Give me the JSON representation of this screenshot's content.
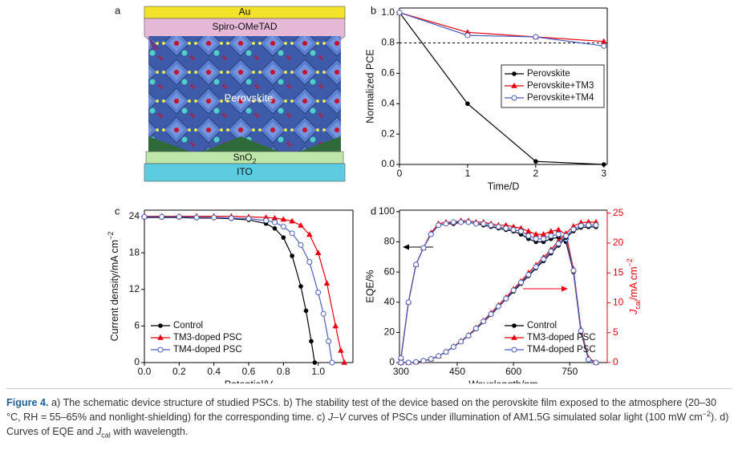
{
  "panel_labels": [
    "a",
    "b",
    "c",
    "d"
  ],
  "schematic": {
    "au": "Au",
    "spiro": "Spiro-OMeTAD",
    "perovskite": "Perovskite",
    "sno2": [
      {
        "text": "SnO"
      },
      {
        "text": "2",
        "style": "sub"
      }
    ],
    "ito": "ITO"
  },
  "chart_data": [
    {
      "type": "line",
      "xlabel": "Time/D",
      "ylabel": "Normalized PCE",
      "x": [
        0,
        1,
        2,
        3
      ],
      "xlim": [
        0,
        3.05
      ],
      "xticks": [
        0,
        1,
        2,
        3
      ],
      "ylim": [
        0,
        1.03
      ],
      "yticks": [
        {
          "value": 0,
          "label": "0.0"
        },
        {
          "value": 0.2,
          "label": "0.2"
        },
        {
          "value": 0.4,
          "label": "0.4"
        },
        {
          "value": 0.6,
          "label": "0.6"
        },
        {
          "value": 0.8,
          "label": "0.8"
        },
        {
          "value": 1.0,
          "label": "1.0"
        }
      ],
      "hline": 0.8,
      "legend": "center right",
      "legend_frame": true,
      "series": [
        {
          "name": "Perovskite",
          "color": "#000000",
          "marker": "circle",
          "values": [
            1.0,
            0.4,
            0.02,
            0.0
          ]
        },
        {
          "name": "Perovskite+TM3",
          "color": "#e8000b",
          "marker": "triangle",
          "values": [
            1.0,
            0.87,
            0.84,
            0.81
          ]
        },
        {
          "name": "Perovskite+TM4",
          "color": "#4a5fc1",
          "marker": "open-circle",
          "values": [
            1.0,
            0.85,
            0.84,
            0.78
          ]
        }
      ]
    },
    {
      "type": "line",
      "xlabel": "Potential/V",
      "ylabel": [
        {
          "text": "Current density/mA cm"
        },
        {
          "text": "−2",
          "style": "sup"
        }
      ],
      "xlim": [
        0,
        1.2
      ],
      "xticks": [
        {
          "value": 0,
          "label": "0.0"
        },
        {
          "value": 0.2,
          "label": "0.2"
        },
        {
          "value": 0.4,
          "label": "0.4"
        },
        {
          "value": 0.6,
          "label": "0.6"
        },
        {
          "value": 0.8,
          "label": "0.8"
        },
        {
          "value": 1.0,
          "label": "1.0"
        }
      ],
      "ylim": [
        0,
        25
      ],
      "yticks": [
        0,
        6,
        12,
        18,
        24
      ],
      "legend": "lower left",
      "legend_frame": false,
      "series": [
        {
          "name": "Control",
          "color": "#000000",
          "marker": "circle",
          "x": [
            0,
            0.1,
            0.2,
            0.3,
            0.4,
            0.5,
            0.6,
            0.7,
            0.75,
            0.8,
            0.85,
            0.9,
            0.93,
            0.96,
            0.98
          ],
          "values": [
            23.8,
            23.8,
            23.8,
            23.7,
            23.7,
            23.6,
            23.4,
            22.8,
            22,
            20.5,
            17.5,
            12.5,
            8.5,
            3.5,
            0
          ]
        },
        {
          "name": "TM3-doped PSC",
          "color": "#e8000b",
          "marker": "triangle",
          "x": [
            0,
            0.1,
            0.2,
            0.3,
            0.4,
            0.5,
            0.6,
            0.7,
            0.75,
            0.8,
            0.85,
            0.9,
            0.95,
            1.0,
            1.05,
            1.1,
            1.13,
            1.15
          ],
          "values": [
            24.0,
            24.0,
            24.0,
            24.0,
            24.0,
            24.0,
            23.9,
            23.8,
            23.7,
            23.5,
            23.2,
            22.5,
            21,
            18,
            13,
            6,
            2,
            0
          ]
        },
        {
          "name": "TM4-doped PSC",
          "color": "#4a5fc1",
          "marker": "open-circle",
          "x": [
            0,
            0.1,
            0.2,
            0.3,
            0.4,
            0.5,
            0.6,
            0.7,
            0.75,
            0.8,
            0.85,
            0.9,
            0.95,
            1.0,
            1.03,
            1.06,
            1.08
          ],
          "values": [
            23.9,
            23.9,
            23.9,
            23.8,
            23.8,
            23.7,
            23.6,
            23.3,
            23.0,
            22.3,
            21.2,
            19.3,
            16.5,
            11.5,
            8,
            3.5,
            0
          ]
        }
      ]
    },
    {
      "type": "line",
      "xlabel": "Wavelength/nm",
      "ylabel": "EQE/%",
      "y2label": [
        {
          "text": "J",
          "style": "italic"
        },
        {
          "text": "cal",
          "style": "sub"
        },
        {
          "text": "/mA cm"
        },
        {
          "text": "−2",
          "style": "sup"
        }
      ],
      "y2color": "#e8000b",
      "x": [
        300,
        320,
        340,
        360,
        380,
        400,
        420,
        440,
        460,
        480,
        500,
        520,
        540,
        560,
        580,
        600,
        620,
        640,
        660,
        680,
        700,
        720,
        740,
        760,
        780,
        800,
        820
      ],
      "xlim": [
        296,
        850
      ],
      "xticks": [
        300,
        450,
        600,
        750
      ],
      "ylim": [
        0,
        101
      ],
      "yticks": [
        0,
        20,
        40,
        60,
        80,
        100
      ],
      "y2lim": [
        0,
        25.5
      ],
      "y2ticks": [
        0,
        5,
        10,
        15,
        20,
        25
      ],
      "legend": "lower right",
      "legend_frame": false,
      "series": [
        {
          "name": "Control",
          "color": "#000000",
          "marker": "circle",
          "values": [
            3,
            40,
            65,
            76,
            85,
            91,
            92,
            92,
            93,
            93,
            92,
            91,
            90,
            89,
            88,
            87,
            85,
            82,
            80,
            80,
            82,
            83,
            80,
            60,
            20,
            2,
            0
          ]
        },
        {
          "name": "TM3-doped PSC",
          "color": "#e8000b",
          "marker": "triangle",
          "values": [
            3,
            40,
            65,
            76,
            86,
            92,
            93,
            93,
            94,
            94,
            93,
            93,
            92,
            91,
            91,
            90,
            89,
            87,
            85,
            85,
            87,
            88,
            85,
            62,
            22,
            3,
            0
          ]
        },
        {
          "name": "TM4-doped PSC",
          "color": "#4a5fc1",
          "marker": "open-circle",
          "values": [
            3,
            40,
            65,
            76,
            85,
            91,
            92,
            93,
            93,
            93,
            92,
            92,
            91,
            90,
            89,
            88,
            87,
            84,
            82,
            82,
            84,
            85,
            82,
            61,
            21,
            2,
            0
          ]
        },
        {
          "color": "#000000",
          "marker": "circle",
          "axis": "y2",
          "values": [
            0,
            0,
            0.1,
            0.3,
            0.6,
            1.1,
            1.8,
            2.6,
            3.5,
            4.5,
            5.6,
            6.8,
            8.0,
            9.3,
            10.6,
            11.9,
            13.2,
            14.5,
            15.8,
            17.0,
            18.3,
            19.6,
            20.9,
            22.0,
            22.6,
            22.7,
            22.7
          ]
        },
        {
          "color": "#e8000b",
          "marker": "triangle",
          "axis": "y2",
          "values": [
            0,
            0,
            0.1,
            0.3,
            0.6,
            1.1,
            1.8,
            2.7,
            3.6,
            4.6,
            5.8,
            7.0,
            8.3,
            9.6,
            10.9,
            12.3,
            13.6,
            15.0,
            16.3,
            17.6,
            18.9,
            20.3,
            21.6,
            22.8,
            23.4,
            23.5,
            23.5
          ]
        },
        {
          "color": "#4a5fc1",
          "marker": "open-circle",
          "axis": "y2",
          "values": [
            0,
            0,
            0.1,
            0.3,
            0.6,
            1.1,
            1.8,
            2.6,
            3.5,
            4.5,
            5.7,
            6.9,
            8.1,
            9.4,
            10.7,
            12.1,
            13.4,
            14.7,
            16.0,
            17.3,
            18.6,
            19.9,
            21.2,
            22.3,
            22.9,
            23.0,
            23.0
          ]
        }
      ]
    }
  ],
  "caption": [
    {
      "text": "Figure 4.",
      "style": "bold"
    },
    {
      "text": " a) The schematic device structure of studied PSCs. b) The stability test of the device based on the perovskite film exposed to the atmosphere (20–30 °C, RH = 55–65% and nonlight-shielding) for the corresponding time. c) "
    },
    {
      "text": "J–V",
      "style": "italic"
    },
    {
      "text": " curves of PSCs under illumination of AM1.5G simulated solar light (100 mW cm"
    },
    {
      "text": "−2",
      "style": "sup"
    },
    {
      "text": "). d) Curves of EQE and "
    },
    {
      "text": "J",
      "style": "italic"
    },
    {
      "text": "cal",
      "style": "sub"
    },
    {
      "text": " with wavelength."
    }
  ]
}
